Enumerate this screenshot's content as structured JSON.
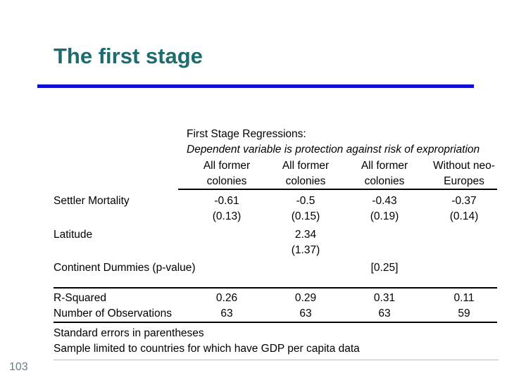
{
  "slide": {
    "title": "The first stage",
    "page_number": "103"
  },
  "colors": {
    "title_color": "#1c6b6e",
    "accent_rule": "#0e0ed6",
    "table_text": "#000000",
    "page_color": "#64808b"
  },
  "table": {
    "heading": "First Stage Regressions:",
    "subheading": "Dependent variable is protection against risk of expropriation",
    "columns": [
      {
        "line1": "All former",
        "line2": "colonies"
      },
      {
        "line1": "All former",
        "line2": "colonies"
      },
      {
        "line1": "All former",
        "line2": "colonies"
      },
      {
        "line1": "Without neo-",
        "line2": "Europes"
      }
    ],
    "rows": [
      {
        "cells": [
          "Settler Mortality",
          "-0.61",
          "-0.5",
          "-0.43",
          "-0.37"
        ]
      },
      {
        "cells": [
          "",
          "(0.13)",
          "(0.15)",
          "(0.19)",
          "(0.14)"
        ]
      },
      {
        "cells": [
          "Latitude",
          "",
          "2.34",
          "",
          ""
        ]
      },
      {
        "cells": [
          "",
          "",
          "(1.37)",
          "",
          ""
        ]
      },
      {
        "cells": [
          "Continent Dummies (p-value)",
          "",
          "",
          "[0.25]",
          ""
        ]
      },
      {
        "cells": [
          "R-Squared",
          "0.26",
          "0.29",
          "0.31",
          "0.11"
        ]
      },
      {
        "cells": [
          "Number of Observations",
          "63",
          "63",
          "63",
          "59"
        ]
      }
    ],
    "notes": [
      "Standard errors in parentheses",
      "Sample limited to countries for which have GDP per capita data"
    ]
  },
  "chart_data": {
    "type": "table",
    "title": "First Stage Regressions:",
    "subtitle": "Dependent variable is protection against risk of expropriation",
    "columns": [
      "All former colonies",
      "All former colonies",
      "All former colonies",
      "Without neo-Europes"
    ],
    "rows": [
      {
        "label": "Settler Mortality",
        "values": [
          "-0.61 (0.13)",
          "-0.5 (0.15)",
          "-0.43 (0.19)",
          "-0.37 (0.14)"
        ]
      },
      {
        "label": "Latitude",
        "values": [
          "",
          "2.34 (1.37)",
          "",
          ""
        ]
      },
      {
        "label": "Continent Dummies (p-value)",
        "values": [
          "",
          "",
          "[0.25]",
          ""
        ]
      },
      {
        "label": "R-Squared",
        "values": [
          "0.26",
          "0.29",
          "0.31",
          "0.11"
        ]
      },
      {
        "label": "Number of Observations",
        "values": [
          "63",
          "63",
          "63",
          "59"
        ]
      }
    ],
    "notes": [
      "Standard errors in parentheses",
      "Sample limited to countries for which have GDP per capita data"
    ]
  }
}
